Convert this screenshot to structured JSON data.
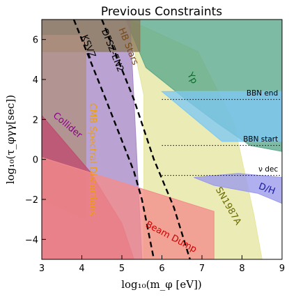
{
  "chart_data": {
    "type": "area",
    "title": "Previous Constraints",
    "xlabel": "log₁₀(m_φ [eV])",
    "ylabel": "log₁₀(τ_φγγ[sec])",
    "xlim": [
      3,
      9
    ],
    "ylim": [
      -5,
      7
    ],
    "xticks": [
      "3",
      "4",
      "5",
      "6",
      "7",
      "8",
      "9"
    ],
    "yticks": [
      "−4",
      "−2",
      "0",
      "2",
      "4",
      "6"
    ],
    "grid": false,
    "regions": [
      {
        "name": "SN1987A",
        "color": "#e6e6a0",
        "points": [
          [
            5.15,
            7.0
          ],
          [
            6.9,
            5.4
          ],
          [
            7.8,
            1.8
          ],
          [
            8.3,
            -2.8
          ],
          [
            8.5,
            -5.0
          ],
          [
            5.55,
            -5.0
          ],
          [
            5.55,
            3.2
          ]
        ]
      },
      {
        "name": "Yp",
        "color": "#5aa88a",
        "points": [
          [
            5.1,
            7.0
          ],
          [
            9.0,
            7.0
          ],
          [
            9.0,
            0.4
          ],
          [
            8.2,
            0.7
          ],
          [
            7.4,
            1.8
          ],
          [
            6.6,
            3.0
          ],
          [
            5.6,
            4.6
          ]
        ]
      },
      {
        "name": "BBN (light)",
        "color": "#7cc8f4",
        "points": [
          [
            6.0,
            3.4
          ],
          [
            9.0,
            3.4
          ],
          [
            9.0,
            0.9
          ],
          [
            7.5,
            0.9
          ]
        ]
      },
      {
        "name": "D/H",
        "color": "#9a9aec",
        "points": [
          [
            6.8,
            -0.9
          ],
          [
            7.9,
            -0.7
          ],
          [
            9.0,
            -0.9
          ],
          [
            9.0,
            -2.2
          ],
          [
            8.4,
            -1.7
          ],
          [
            7.3,
            -1.3
          ]
        ]
      },
      {
        "name": "CMB Spectral Distortions",
        "color": "#a688c6",
        "points": [
          [
            3.0,
            7.0
          ],
          [
            5.2,
            7.0
          ],
          [
            5.3,
            3.0
          ],
          [
            5.5,
            -5.0
          ],
          [
            3.0,
            -5.0
          ]
        ]
      },
      {
        "name": "HB Stars",
        "color": "#8a7a5a",
        "points": [
          [
            3.0,
            7.0
          ],
          [
            5.45,
            7.0
          ],
          [
            5.45,
            5.4
          ],
          [
            3.0,
            5.4
          ]
        ]
      },
      {
        "name": "KSVZ band",
        "color": "#b09080",
        "points": [
          [
            3.0,
            6.2
          ],
          [
            3.0,
            -2.0
          ],
          [
            4.1,
            -3.0
          ],
          [
            4.1,
            6.2
          ]
        ]
      },
      {
        "name": "Collider",
        "color": "#c04a70",
        "points": [
          [
            3.0,
            2.2
          ],
          [
            4.2,
            -0.6
          ],
          [
            5.0,
            -3.2
          ],
          [
            5.3,
            -5.0
          ],
          [
            3.0,
            -5.0
          ]
        ]
      },
      {
        "name": "Beam Dump",
        "color": "#f48c8c",
        "points": [
          [
            3.0,
            0.1
          ],
          [
            7.3,
            -2.6
          ],
          [
            7.3,
            -5.0
          ],
          [
            3.0,
            -5.0
          ]
        ]
      }
    ],
    "series": [
      {
        "name": "KSVZ",
        "values": [
          [
            3.8,
            7.0
          ],
          [
            4.6,
            3.0
          ],
          [
            5.3,
            -0.6
          ],
          [
            5.5,
            -2.0
          ],
          [
            5.8,
            -5.0
          ]
        ]
      },
      {
        "name": "DFSZ-EN2",
        "values": [
          [
            4.5,
            7.0
          ],
          [
            5.3,
            3.0
          ],
          [
            5.8,
            0.0
          ],
          [
            6.3,
            -2.4
          ],
          [
            6.7,
            -5.0
          ]
        ]
      }
    ],
    "annotations": [
      "BBN end",
      "BBN start",
      "ν dec",
      "Yp",
      "D/H",
      "SN1987A",
      "Beam Dump",
      "Collider",
      "CMB Spectral Distortions",
      "HB Stars",
      "KSVZ",
      "DFSZ-EN2"
    ],
    "reference_lines": [
      {
        "name": "BBN end",
        "y": 3.0
      },
      {
        "name": "BBN start",
        "y": 0.7
      },
      {
        "name": "ν dec",
        "y": -0.8
      }
    ]
  }
}
